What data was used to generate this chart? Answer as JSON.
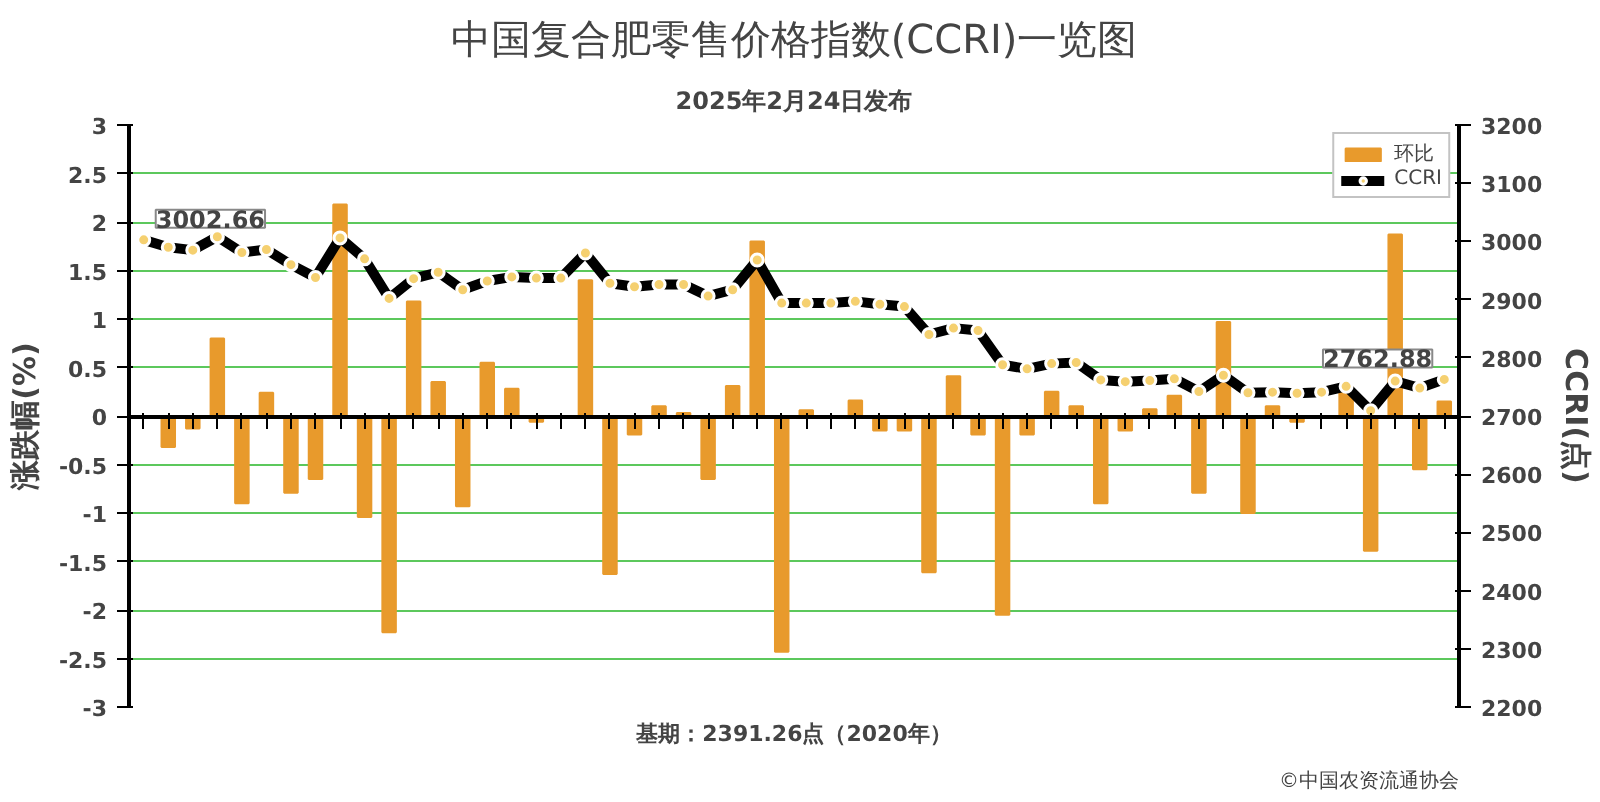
{
  "chart_data": {
    "type": "bar",
    "title": "中国复合肥零售价格指数(CCRI)一览图",
    "subtitle": "2025年2月24日发布",
    "ylabel": "涨跌幅(%)",
    "y2label": "CCRI(点)",
    "categories": [
      null,
      null,
      null,
      null,
      null,
      null,
      null,
      null,
      null,
      null,
      null,
      null,
      null,
      null,
      null,
      null,
      null,
      null,
      null,
      null,
      null,
      null,
      null,
      null,
      null,
      null,
      null,
      null,
      null,
      null,
      null,
      null,
      null,
      null,
      null,
      null,
      null,
      null,
      null,
      null,
      null,
      null,
      null,
      null,
      null,
      null,
      null,
      null,
      null,
      null,
      null,
      null,
      null,
      null
    ],
    "series": [
      {
        "name": "环比",
        "color": "#e89a2c",
        "values": [
          0,
          -0.32,
          -0.13,
          0.8,
          -0.9,
          0.24,
          -0.79,
          -0.65,
          2.18,
          -1.04,
          -2.23,
          1.18,
          0.35,
          -0.93,
          0.55,
          0.28,
          -0.06,
          null,
          1.4,
          -1.63,
          -0.19,
          0.1,
          0.03,
          -0.65,
          0.31,
          1.8,
          -2.43,
          0.06,
          null,
          0.16,
          -0.15,
          -0.15,
          -1.61,
          0.41,
          -0.19,
          -2.05,
          -0.19,
          0.25,
          0.1,
          -0.9,
          -0.15,
          0.07,
          0.21,
          -0.79,
          0.97,
          -1.0,
          0.1,
          -0.06,
          null,
          0.3,
          -1.39,
          1.87,
          -0.55,
          0.15
        ]
      },
      {
        "name": "CCRI",
        "type": "line",
        "axis": "y2",
        "color": "#000000",
        "marker": "circle",
        "values": [
          3002.66,
          2990,
          2985,
          3008,
          2981,
          2986,
          2960,
          2938,
          3006,
          2970,
          2902,
          2936,
          2947,
          2917,
          2932,
          2939,
          2937,
          2937,
          2980,
          2928,
          2922,
          2926,
          2926,
          2906,
          2917,
          2968,
          2894,
          2894,
          2894,
          2897,
          2892,
          2888,
          2840,
          2851,
          2847,
          2788,
          2781,
          2790,
          2792,
          2762,
          2759,
          2761,
          2764,
          2742,
          2770,
          2740,
          2741,
          2739,
          2741,
          2751,
          2709,
          2760,
          2748,
          2762.88
        ],
        "value_labels": [
          "3002.66",
          null,
          null,
          null,
          null,
          null,
          null,
          null,
          null,
          null,
          null,
          null,
          null,
          null,
          null,
          null,
          null,
          null,
          null,
          null,
          null,
          null,
          null,
          null,
          null,
          null,
          null,
          null,
          null,
          null,
          null,
          null,
          null,
          null,
          null,
          null,
          null,
          null,
          null,
          null,
          null,
          null,
          null,
          null,
          null,
          null,
          null,
          null,
          null,
          null,
          null,
          null,
          null,
          "2762.88"
        ]
      }
    ],
    "ylim": [
      -3,
      3
    ],
    "yticks": [
      -3,
      -2.5,
      -2,
      -1.5,
      -1,
      -0.5,
      0,
      0.5,
      1,
      1.5,
      2,
      2.5,
      3
    ],
    "y2lim": [
      2200,
      3200
    ],
    "y2ticks": [
      2200,
      2300,
      2400,
      2500,
      2600,
      2700,
      2800,
      2900,
      3000,
      3100,
      3200
    ],
    "grid": "y",
    "legend": "top right",
    "tick_labels": "y",
    "annotations": [
      "基期：2391.26点（2020年）",
      "©中国农资流通协会"
    ]
  }
}
